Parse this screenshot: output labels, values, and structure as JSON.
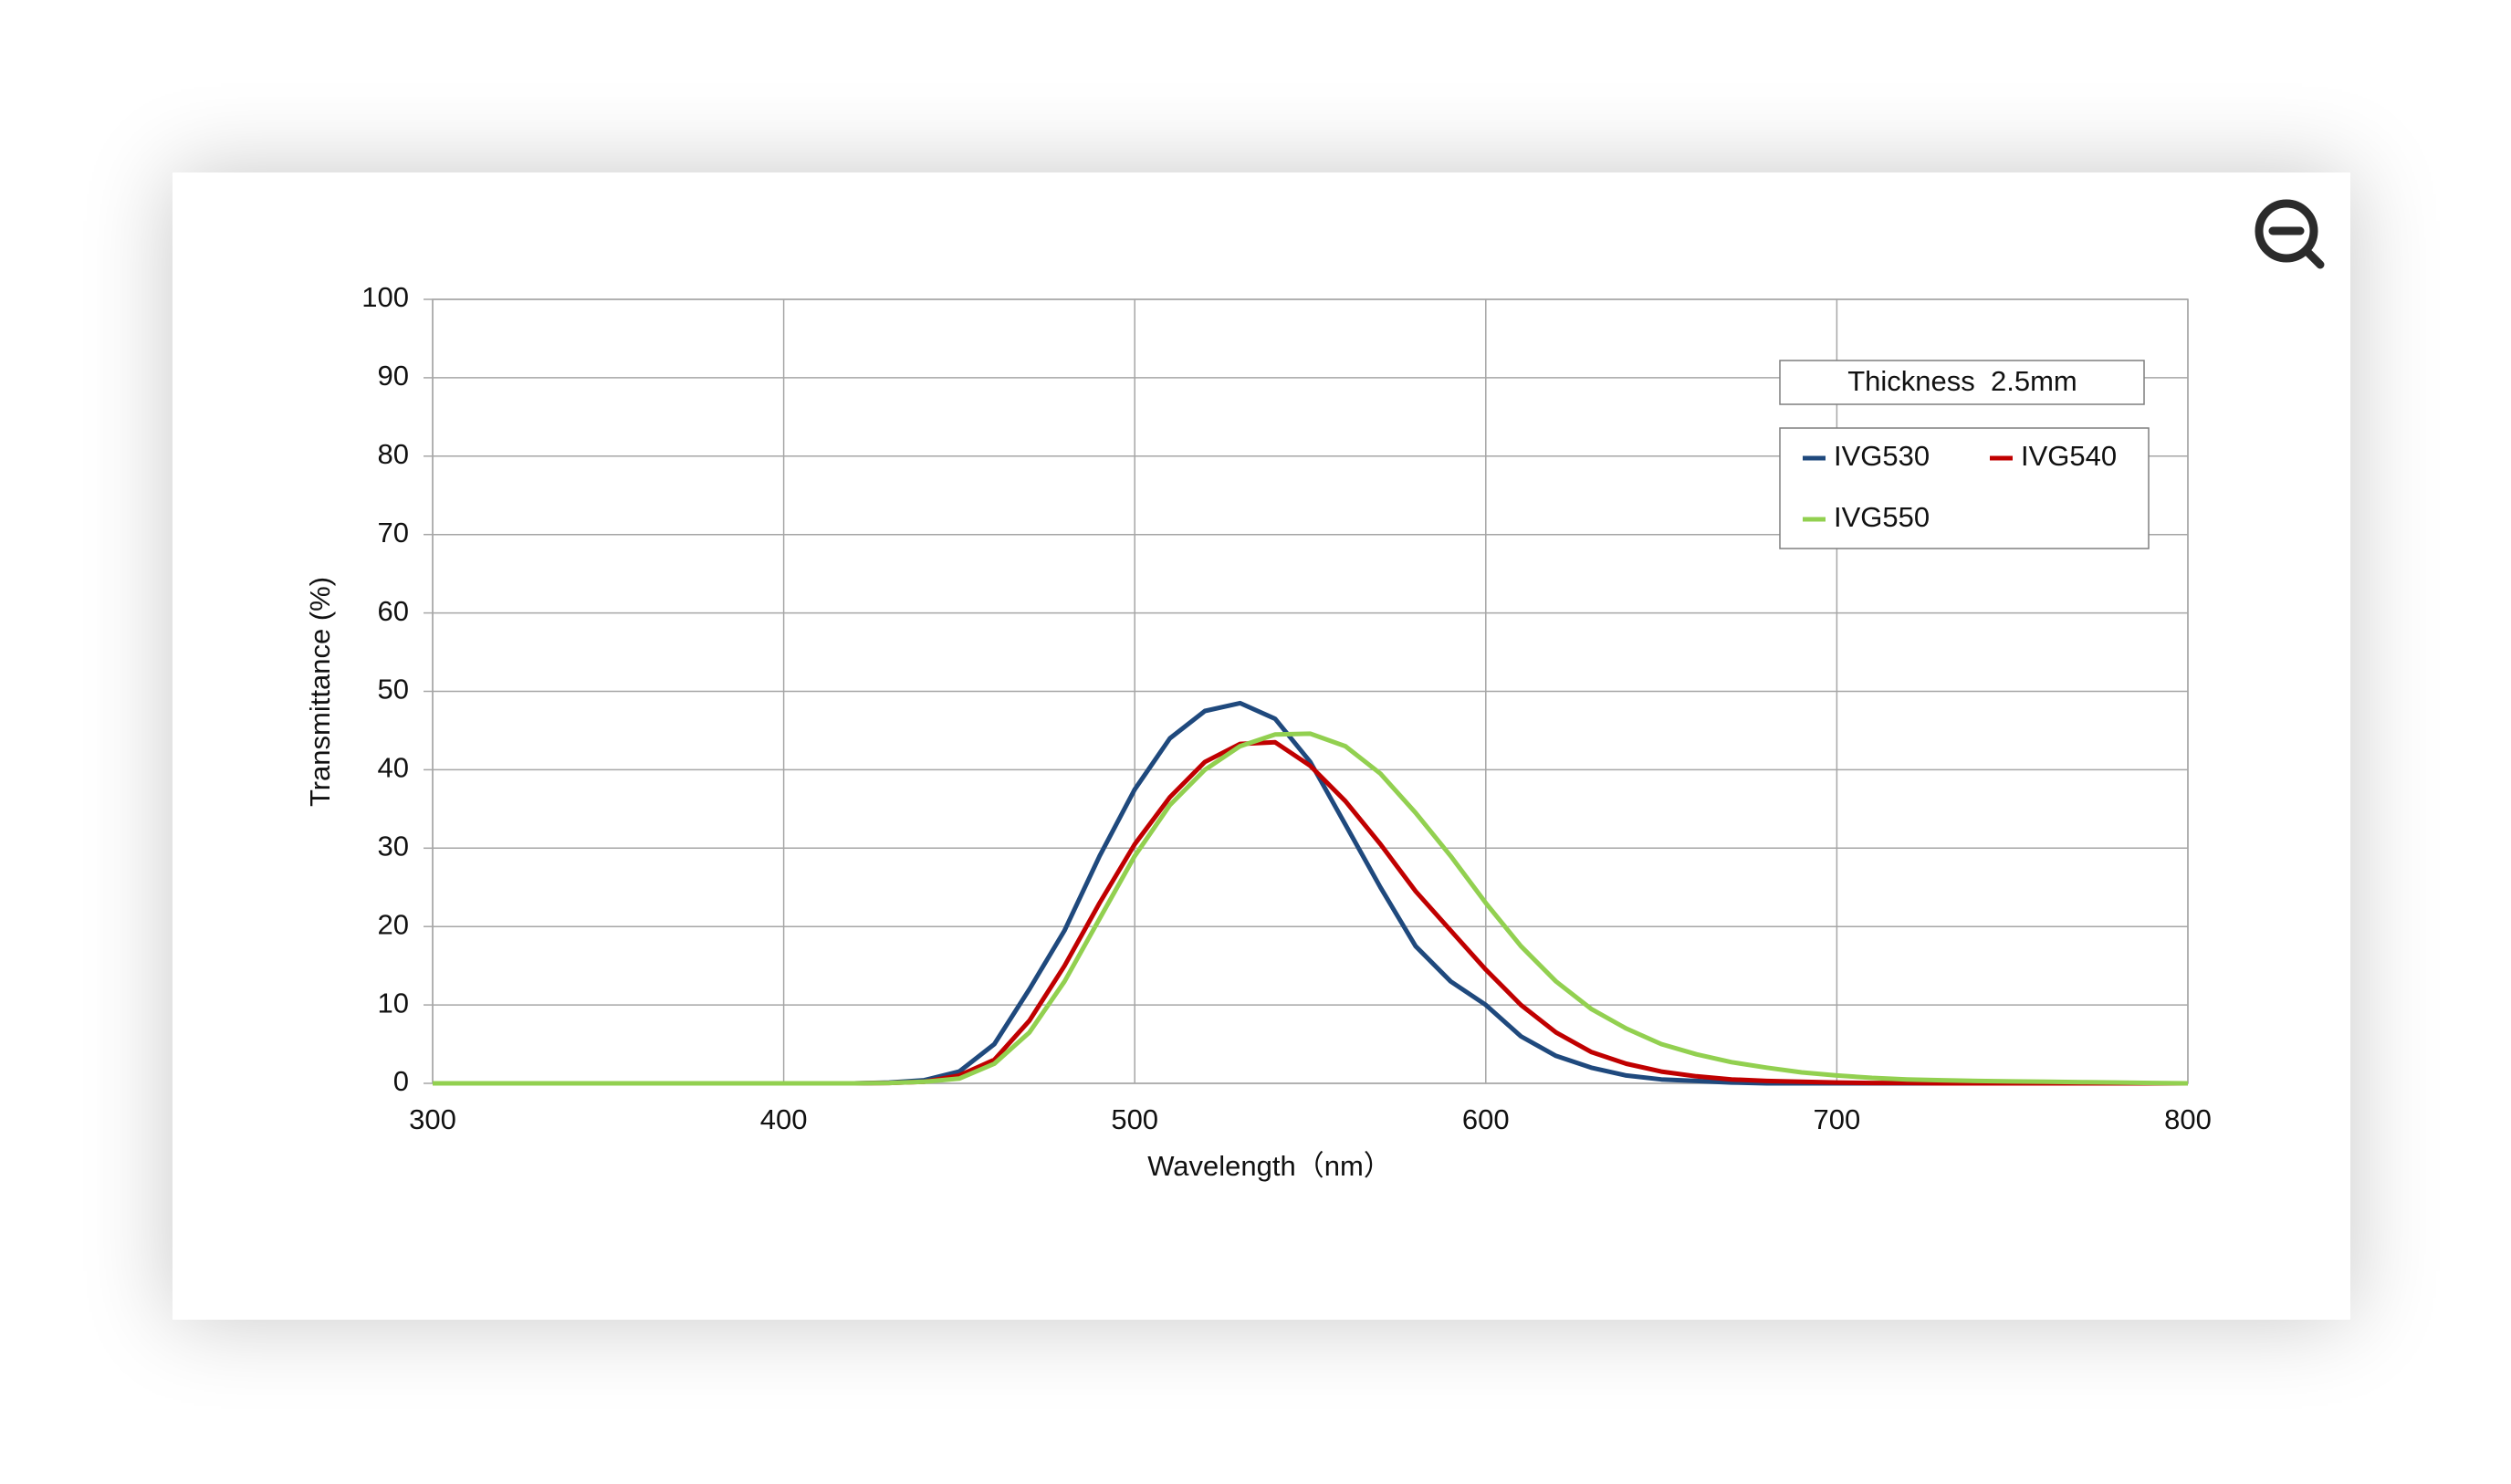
{
  "chart_data": {
    "type": "line",
    "x_label": "Wavelength（nm）",
    "y_label": "Transmittance (%)",
    "annotation": "Thickness  2.5mm",
    "x": [
      300,
      310,
      320,
      330,
      340,
      350,
      360,
      370,
      380,
      390,
      400,
      410,
      420,
      430,
      440,
      450,
      460,
      470,
      480,
      490,
      500,
      510,
      520,
      530,
      540,
      550,
      560,
      570,
      580,
      590,
      600,
      610,
      620,
      630,
      640,
      650,
      660,
      670,
      680,
      690,
      700,
      710,
      720,
      730,
      740,
      750,
      760,
      770,
      780,
      790,
      800
    ],
    "series": [
      {
        "name": "IVG530",
        "color": "#1f497d",
        "values": [
          0,
          0,
          0,
          0,
          0,
          0,
          0,
          0,
          0,
          0,
          0,
          0,
          0,
          0.1,
          0.4,
          1.5,
          5,
          12,
          19.5,
          29,
          37.5,
          44,
          47.5,
          48.5,
          46.5,
          41,
          33,
          25,
          17.5,
          13,
          10,
          6,
          3.5,
          2,
          1,
          0.5,
          0.3,
          0.1,
          0,
          0,
          0,
          0,
          0,
          0,
          0,
          0,
          0,
          0,
          0,
          0,
          0
        ]
      },
      {
        "name": "IVG540",
        "color": "#c00000",
        "values": [
          0,
          0,
          0,
          0,
          0,
          0,
          0,
          0,
          0,
          0,
          0,
          0,
          0,
          0.05,
          0.2,
          1,
          3,
          8,
          15,
          23,
          30.5,
          36.5,
          41,
          43.3,
          43.5,
          40.5,
          36,
          30.5,
          24.5,
          19.5,
          14.5,
          10,
          6.5,
          4,
          2.5,
          1.5,
          0.9,
          0.5,
          0.3,
          0.2,
          0.1,
          0.05,
          0.05,
          0,
          0,
          0,
          0,
          0,
          0,
          0,
          0
        ]
      },
      {
        "name": "IVG550",
        "color": "#92d050",
        "values": [
          0,
          0,
          0,
          0,
          0,
          0,
          0,
          0,
          0,
          0,
          0,
          0,
          0,
          0.05,
          0.2,
          0.6,
          2.5,
          6.5,
          13,
          21,
          29,
          35.5,
          40,
          43,
          44.5,
          44.6,
          43,
          39.5,
          34.5,
          29,
          23,
          17.5,
          13,
          9.5,
          7,
          5,
          3.7,
          2.7,
          2,
          1.4,
          1,
          0.7,
          0.5,
          0.4,
          0.3,
          0.25,
          0.2,
          0.15,
          0.1,
          0.05,
          0
        ]
      }
    ],
    "xlim": [
      300,
      800
    ],
    "ylim": [
      0,
      100
    ],
    "xticks": [
      300,
      400,
      500,
      600,
      700,
      800
    ],
    "yticks": [
      0,
      10,
      20,
      30,
      40,
      50,
      60,
      70,
      80,
      90,
      100
    ],
    "grid": true,
    "legend": "upper right"
  }
}
